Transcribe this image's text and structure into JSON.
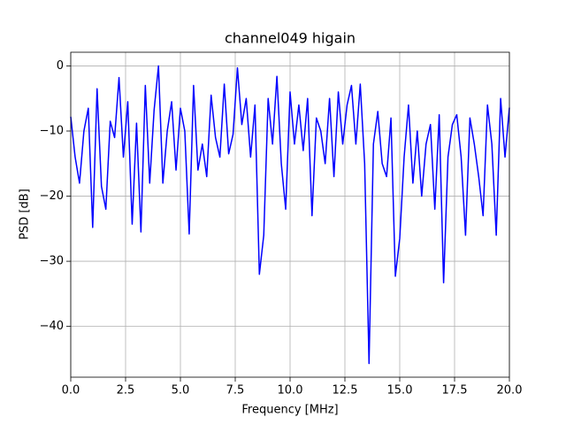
{
  "chart_data": {
    "type": "line",
    "title": "channel049 higain",
    "xlabel": "Frequency [MHz]",
    "ylabel": "PSD [dB]",
    "color": "#0000ff",
    "grid": true,
    "xlim": [
      0,
      20
    ],
    "ylim": [
      -47.8,
      2.1
    ],
    "xticks": [
      {
        "value": 0,
        "label": "0.0"
      },
      2.5,
      {
        "value": 5,
        "label": "5.0"
      },
      7.5,
      {
        "value": 10,
        "label": "10.0"
      },
      12.5,
      {
        "value": 15,
        "label": "15.0"
      },
      17.5,
      {
        "value": 20,
        "label": "20.0"
      }
    ],
    "yticks": [
      {
        "value": -40,
        "label": "−40"
      },
      {
        "value": -30,
        "label": "−30"
      },
      {
        "value": -20,
        "label": "−20"
      },
      {
        "value": -10,
        "label": "−10"
      },
      0
    ],
    "x": [
      0,
      0.2,
      0.4,
      0.6,
      0.8,
      1,
      1.2,
      1.4,
      1.6,
      1.8,
      2,
      2.2,
      2.4,
      2.6,
      2.8,
      3,
      3.2,
      3.4,
      3.6,
      3.8,
      4,
      4.2,
      4.4,
      4.6,
      4.8,
      5,
      5.2,
      5.4,
      5.6,
      5.8,
      6,
      6.2,
      6.4,
      6.6,
      6.8,
      7,
      7.2,
      7.4,
      7.6,
      7.8,
      8,
      8.2,
      8.4,
      8.6,
      8.8,
      9,
      9.2,
      9.4,
      9.6,
      9.8,
      10,
      10.2,
      10.4,
      10.6,
      10.8,
      11,
      11.2,
      11.4,
      11.6,
      11.8,
      12,
      12.2,
      12.4,
      12.6,
      12.8,
      13,
      13.2,
      13.4,
      13.6,
      13.8,
      14,
      14.2,
      14.4,
      14.6,
      14.8,
      15,
      15.2,
      15.4,
      15.6,
      15.8,
      16,
      16.2,
      16.4,
      16.6,
      16.8,
      17,
      17.2,
      17.4,
      17.6,
      17.8,
      18,
      18.2,
      18.4,
      18.6,
      18.8,
      19,
      19.2,
      19.4,
      19.6,
      19.8,
      20
    ],
    "values": [
      -7.8,
      -14,
      -18,
      -10,
      -6.5,
      -24.8,
      -3.5,
      -18.5,
      -22,
      -8.5,
      -11,
      -1.8,
      -14,
      -5.5,
      -24.3,
      -8.8,
      -25.5,
      -3,
      -18,
      -6.8,
      0,
      -18,
      -10,
      -5.5,
      -16,
      -6.5,
      -10,
      -25.8,
      -3,
      -16,
      -12,
      -17,
      -4.5,
      -11,
      -14,
      -2.8,
      -13.5,
      -10.5,
      -0.3,
      -9,
      -5,
      -14,
      -6,
      -32,
      -26,
      -5,
      -12,
      -1.6,
      -15,
      -22,
      -4,
      -12,
      -6,
      -13,
      -5,
      -23,
      -8,
      -10,
      -15,
      -5,
      -17,
      -4,
      -12,
      -6,
      -3,
      -12,
      -2.8,
      -15,
      -45.7,
      -12,
      -7,
      -15,
      -17,
      -8,
      -32.3,
      -26.5,
      -14,
      -6,
      -18,
      -10,
      -20,
      -12,
      -9,
      -22,
      -7.5,
      -33.3,
      -14,
      -9,
      -7.5,
      -14,
      -26,
      -8,
      -12,
      -17,
      -23,
      -6,
      -12,
      -26,
      -5,
      -14,
      -6.4
    ]
  }
}
